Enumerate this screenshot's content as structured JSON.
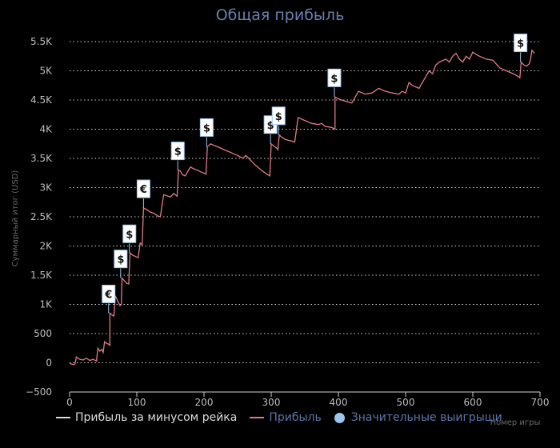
{
  "chart_data": {
    "type": "line",
    "title": "Общая прибыль",
    "xlabel": "Номер игры",
    "ylabel": "Суммарный итог (USD)",
    "xlim": [
      0,
      700
    ],
    "ylim": [
      -500,
      5500
    ],
    "x_ticks": [
      "0",
      "100",
      "200",
      "300",
      "400",
      "500",
      "600",
      "700"
    ],
    "y_ticks": [
      "−500",
      "0",
      "500",
      "1K",
      "1.5K",
      "2K",
      "2.5K",
      "3K",
      "3.5K",
      "4K",
      "4.5K",
      "5K",
      "5.5K"
    ],
    "grid": true,
    "legend_position": "bottom-left",
    "legend": {
      "rake_line": "Прибыль за минусом рейка",
      "profit_line": "Прибыль",
      "big_wins": "Значительные выигрыши"
    },
    "series": [
      {
        "name": "Прибыль",
        "color": "#e07b87",
        "points": [
          [
            0,
            -10
          ],
          [
            5,
            -30
          ],
          [
            8,
            -20
          ],
          [
            10,
            100
          ],
          [
            15,
            60
          ],
          [
            20,
            50
          ],
          [
            25,
            80
          ],
          [
            30,
            40
          ],
          [
            35,
            60
          ],
          [
            40,
            30
          ],
          [
            42,
            250
          ],
          [
            45,
            200
          ],
          [
            48,
            230
          ],
          [
            50,
            180
          ],
          [
            52,
            360
          ],
          [
            55,
            330
          ],
          [
            58,
            320
          ],
          [
            60,
            300
          ],
          [
            60,
            850
          ],
          [
            63,
            820
          ],
          [
            66,
            800
          ],
          [
            68,
            1150
          ],
          [
            72,
            1050
          ],
          [
            75,
            980
          ],
          [
            77,
            1000
          ],
          [
            78,
            1450
          ],
          [
            82,
            1400
          ],
          [
            85,
            1360
          ],
          [
            88,
            1350
          ],
          [
            90,
            1880
          ],
          [
            93,
            1850
          ],
          [
            98,
            1820
          ],
          [
            102,
            1800
          ],
          [
            105,
            2050
          ],
          [
            108,
            2020
          ],
          [
            110,
            2650
          ],
          [
            115,
            2620
          ],
          [
            120,
            2580
          ],
          [
            125,
            2560
          ],
          [
            128,
            2540
          ],
          [
            132,
            2510
          ],
          [
            135,
            2500
          ],
          [
            140,
            2880
          ],
          [
            145,
            2860
          ],
          [
            150,
            2840
          ],
          [
            155,
            2900
          ],
          [
            160,
            2850
          ],
          [
            162,
            3300
          ],
          [
            165,
            3280
          ],
          [
            168,
            3220
          ],
          [
            172,
            3200
          ],
          [
            176,
            3280
          ],
          [
            180,
            3350
          ],
          [
            185,
            3320
          ],
          [
            190,
            3300
          ],
          [
            195,
            3270
          ],
          [
            200,
            3250
          ],
          [
            203,
            3230
          ],
          [
            205,
            3700
          ],
          [
            210,
            3750
          ],
          [
            215,
            3720
          ],
          [
            220,
            3700
          ],
          [
            230,
            3650
          ],
          [
            240,
            3600
          ],
          [
            250,
            3550
          ],
          [
            258,
            3500
          ],
          [
            262,
            3550
          ],
          [
            265,
            3520
          ],
          [
            275,
            3400
          ],
          [
            285,
            3300
          ],
          [
            295,
            3220
          ],
          [
            298,
            3200
          ],
          [
            300,
            3750
          ],
          [
            305,
            3700
          ],
          [
            308,
            3680
          ],
          [
            310,
            3650
          ],
          [
            312,
            3900
          ],
          [
            315,
            3870
          ],
          [
            320,
            3830
          ],
          [
            325,
            3810
          ],
          [
            330,
            3800
          ],
          [
            335,
            3780
          ],
          [
            340,
            4200
          ],
          [
            350,
            4150
          ],
          [
            360,
            4100
          ],
          [
            370,
            4080
          ],
          [
            375,
            4100
          ],
          [
            380,
            4050
          ],
          [
            390,
            4030
          ],
          [
            395,
            4000
          ],
          [
            395,
            4550
          ],
          [
            400,
            4520
          ],
          [
            410,
            4480
          ],
          [
            420,
            4450
          ],
          [
            430,
            4650
          ],
          [
            440,
            4600
          ],
          [
            450,
            4620
          ],
          [
            460,
            4700
          ],
          [
            470,
            4650
          ],
          [
            480,
            4620
          ],
          [
            490,
            4600
          ],
          [
            495,
            4650
          ],
          [
            500,
            4620
          ],
          [
            505,
            4800
          ],
          [
            510,
            4750
          ],
          [
            520,
            4700
          ],
          [
            530,
            4900
          ],
          [
            535,
            5000
          ],
          [
            540,
            4950
          ],
          [
            545,
            5100
          ],
          [
            550,
            5150
          ],
          [
            560,
            5200
          ],
          [
            565,
            5150
          ],
          [
            570,
            5250
          ],
          [
            575,
            5300
          ],
          [
            580,
            5200
          ],
          [
            585,
            5150
          ],
          [
            590,
            5250
          ],
          [
            595,
            5200
          ],
          [
            600,
            5320
          ],
          [
            605,
            5280
          ],
          [
            610,
            5250
          ],
          [
            620,
            5200
          ],
          [
            630,
            5180
          ],
          [
            640,
            5050
          ],
          [
            650,
            5000
          ],
          [
            660,
            4950
          ],
          [
            668,
            4900
          ],
          [
            670,
            4880
          ],
          [
            672,
            5150
          ],
          [
            676,
            5100
          ],
          [
            680,
            5080
          ],
          [
            684,
            5120
          ],
          [
            686,
            5200
          ],
          [
            688,
            5350
          ],
          [
            692,
            5300
          ]
        ]
      }
    ],
    "big_wins": [
      {
        "x": 58,
        "y": 850,
        "label": "€"
      },
      {
        "x": 76,
        "y": 1450,
        "label": "$"
      },
      {
        "x": 89,
        "y": 1880,
        "label": "$"
      },
      {
        "x": 110,
        "y": 2650,
        "label": "€"
      },
      {
        "x": 161,
        "y": 3300,
        "label": "$"
      },
      {
        "x": 204,
        "y": 3700,
        "label": "$"
      },
      {
        "x": 299,
        "y": 3750,
        "label": "$"
      },
      {
        "x": 311,
        "y": 3900,
        "label": "$"
      },
      {
        "x": 394,
        "y": 4550,
        "label": "$"
      },
      {
        "x": 671,
        "y": 5150,
        "label": "$"
      }
    ]
  }
}
